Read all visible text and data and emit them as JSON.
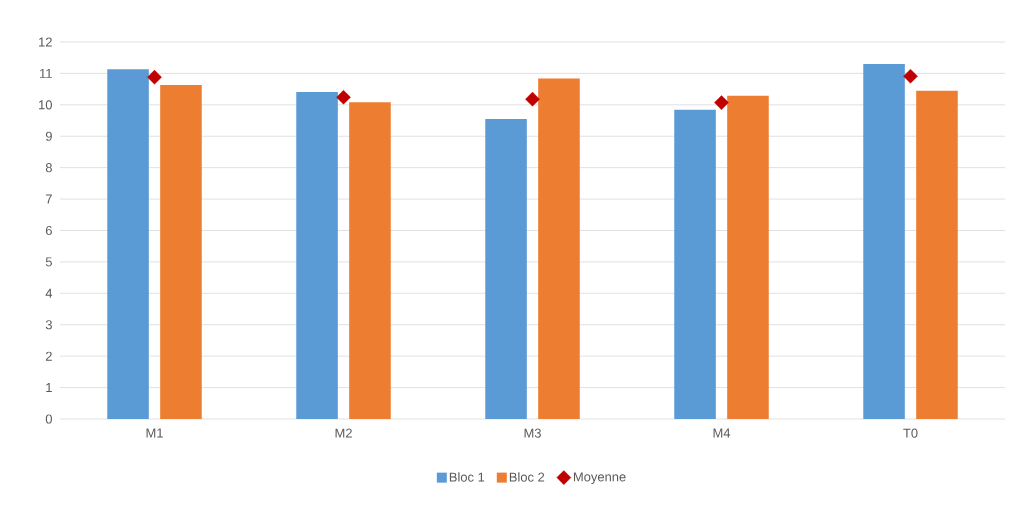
{
  "chart_data": {
    "type": "bar",
    "categories": [
      "M1",
      "M2",
      "M3",
      "M4",
      "T0"
    ],
    "series": [
      {
        "name": "Bloc 1",
        "color": "#5b9bd5",
        "values": [
          11.13,
          10.41,
          9.55,
          9.84,
          11.3
        ]
      },
      {
        "name": "Bloc 2",
        "color": "#ed7d31",
        "values": [
          10.63,
          10.08,
          10.84,
          10.29,
          10.45
        ]
      },
      {
        "name": "Moyenne",
        "type": "scatter",
        "color": "#c00000",
        "marker": "diamond",
        "x": [
          "M1",
          "M2",
          "M3",
          "M4",
          "T0"
        ],
        "values": [
          10.88,
          10.24,
          10.18,
          10.07,
          10.91
        ]
      }
    ],
    "ylim": [
      0,
      12
    ],
    "yticks": [
      0,
      1,
      2,
      3,
      4,
      5,
      6,
      7,
      8,
      9,
      10,
      11,
      12
    ],
    "grid": "y",
    "legend": "bottom"
  }
}
